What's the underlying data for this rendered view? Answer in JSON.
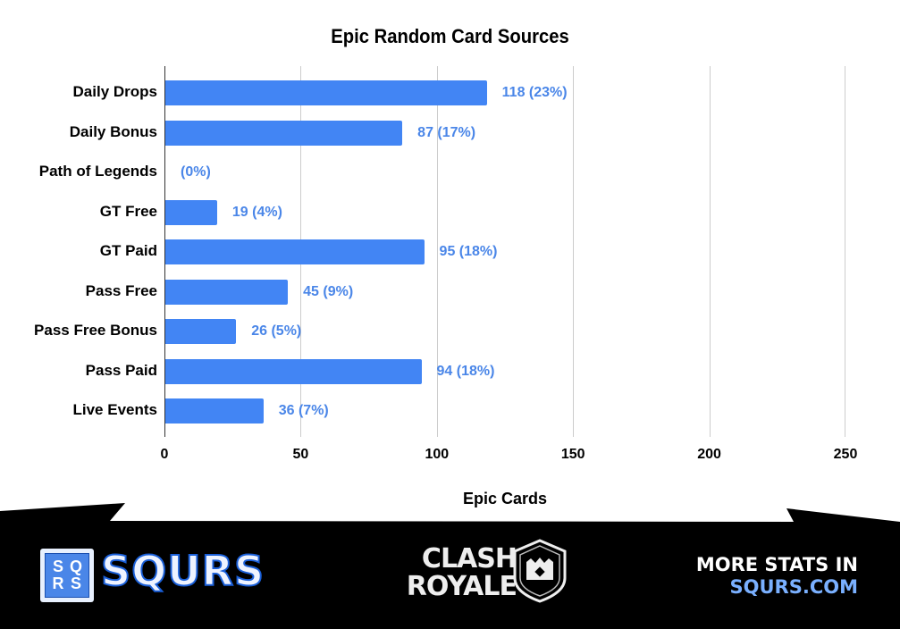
{
  "chart_data": {
    "type": "bar",
    "orientation": "horizontal",
    "title": "Epic Random Card Sources",
    "xlabel": "Epic Cards",
    "ylabel": "",
    "xlim": [
      0,
      250
    ],
    "xticks": [
      0,
      50,
      100,
      150,
      200,
      250
    ],
    "grid": true,
    "categories": [
      "Daily Drops",
      "Daily Bonus",
      "Path of Legends",
      "GT Free",
      "GT Paid",
      "Pass Free",
      "Pass Free Bonus",
      "Pass Paid",
      "Live Events"
    ],
    "values": [
      118,
      87,
      0,
      19,
      95,
      45,
      26,
      94,
      36
    ],
    "percentages": [
      "23%",
      "17%",
      "0%",
      "4%",
      "18%",
      "9%",
      "5%",
      "18%",
      "7%"
    ],
    "data_labels": [
      "118 (23%)",
      "87 (17%)",
      "(0%)",
      "19 (4%)",
      "95 (18%)",
      "45 (9%)",
      "26 (5%)",
      "94 (18%)",
      "36 (7%)"
    ],
    "bar_color": "#4285f4",
    "label_color": "#4a86e8"
  },
  "ticks": [
    "0",
    "50",
    "100",
    "150",
    "200",
    "250"
  ],
  "footer": {
    "squrs_logo_letters": [
      "S",
      "Q",
      "R",
      "S"
    ],
    "squrs_wordmark": "SQURS",
    "game_logo_line1": "CLASH",
    "game_logo_line2": "ROYALE",
    "promo_line1": "MORE STATS IN",
    "promo_line2": "SQURS.COM",
    "band_color": "#000000",
    "accent_color": "#7ab0ff"
  }
}
